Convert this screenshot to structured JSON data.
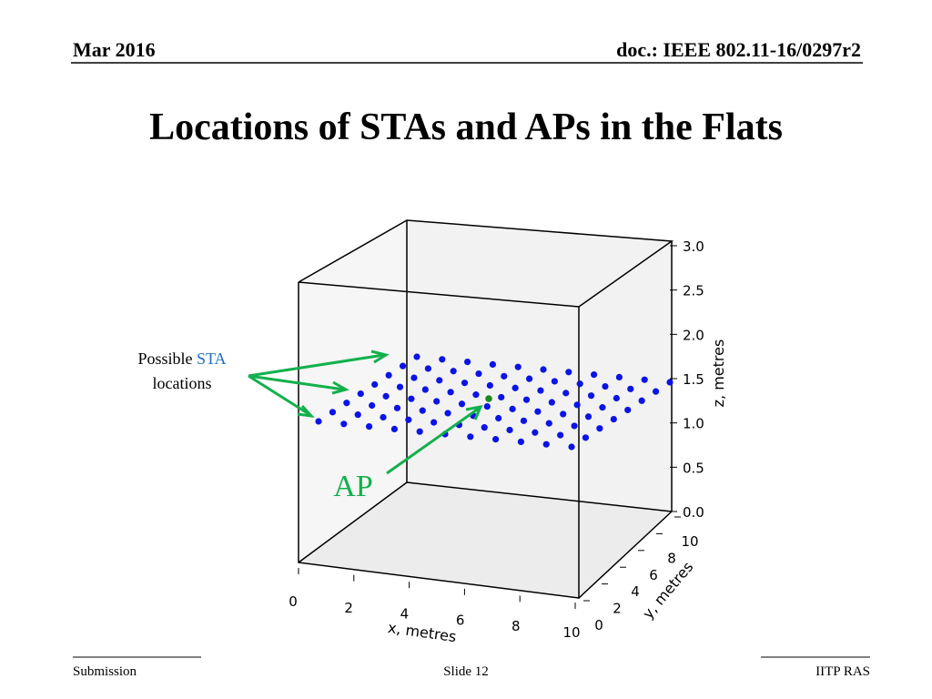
{
  "header": {
    "date": "Mar 2016",
    "doc": "doc.: IEEE 802.11-16/0297r2"
  },
  "title": "Locations of STAs and APs in the Flats",
  "figure": {
    "z_ticks": [
      "3.0",
      "2.5",
      "2.0",
      "1.5",
      "1.0",
      "0.5",
      "0.0"
    ],
    "x_ticks": [
      0,
      2,
      4,
      6,
      8,
      10
    ],
    "y_ticks": [
      0,
      2,
      4,
      6,
      8,
      10
    ],
    "x_label": "x, metres",
    "y_label": "y, metres",
    "z_label": "z, metres"
  },
  "annotations": {
    "sta_prefix": "Possible",
    "sta_word": "STA",
    "sta_suffix": "locations",
    "ap": "AP"
  },
  "footer": {
    "left": "Submission",
    "center": "Slide 12",
    "right": "IITP RAS"
  }
}
